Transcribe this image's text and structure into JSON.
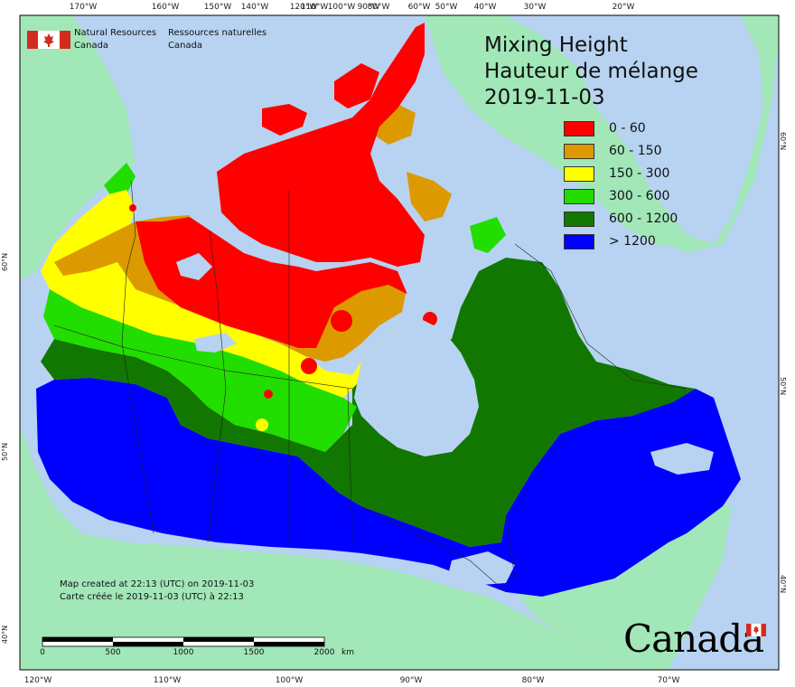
{
  "map": {
    "title_en": "Mixing Height",
    "title_fr": "Hauteur de mélange",
    "date": "2019-11-03"
  },
  "agency": {
    "name_en_line1": "Natural Resources",
    "name_en_line2": "Canada",
    "name_fr_line1": "Ressources naturelles",
    "name_fr_line2": "Canada"
  },
  "legend": [
    {
      "label": "0 - 60",
      "color": "#ff0000"
    },
    {
      "label": "60 - 150",
      "color": "#dc9a00"
    },
    {
      "label": "150 - 300",
      "color": "#ffff00"
    },
    {
      "label": "300 - 600",
      "color": "#22dd00"
    },
    {
      "label": "600 - 1200",
      "color": "#117700"
    },
    {
      "label": "> 1200",
      "color": "#0000ff"
    }
  ],
  "colors": {
    "ocean": "#b7d3f1",
    "land": "#a1e7b8",
    "lakes": "#b7d3f1"
  },
  "created": {
    "line_en": "Map created at 22:13 (UTC) on 2019-11-03",
    "line_fr": "Carte créée le 2019-11-03 (UTC) à 22:13"
  },
  "scale_bar": {
    "labels": [
      "0",
      "500",
      "1000",
      "1500",
      "2000"
    ],
    "unit": "km"
  },
  "graticule": {
    "top": [
      "170°W",
      "160°W",
      "150°W",
      "140°W",
      "120°W",
      "110°W",
      "100°W",
      "90°W",
      "80°W",
      "60°W",
      "50°W",
      "40°W",
      "30°W",
      "20°W"
    ],
    "bottom": [
      "120°W",
      "110°W",
      "100°W",
      "90°W",
      "80°W",
      "70°W"
    ],
    "left": [
      "60°N",
      "50°N",
      "40°N"
    ],
    "right": [
      "60°N",
      "50°N",
      "40°N"
    ]
  },
  "wordmark": "Canada"
}
